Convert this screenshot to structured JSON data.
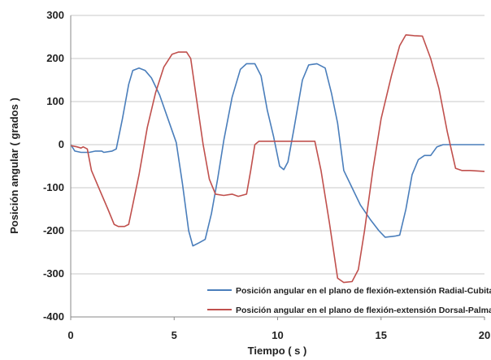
{
  "chart_data": {
    "type": "line",
    "xlabel": "Tiempo ( s )",
    "ylabel": "Posición angular ( grados )",
    "xlim": [
      0,
      20
    ],
    "ylim": [
      -400,
      300
    ],
    "xticks": [
      0,
      5,
      10,
      15,
      20
    ],
    "yticks": [
      -400,
      -300,
      -200,
      -100,
      0,
      100,
      200,
      300
    ],
    "grid": "horizontal",
    "legend_position": "bottom-right",
    "series": [
      {
        "name": "Posición angular en el plano de flexión-extensión Radial-Cubital",
        "color": "#4a7ebb",
        "points": [
          [
            0,
            0
          ],
          [
            0.2,
            -15
          ],
          [
            0.5,
            -18
          ],
          [
            0.9,
            -18
          ],
          [
            1.2,
            -15
          ],
          [
            1.5,
            -15
          ],
          [
            1.6,
            -18
          ],
          [
            2.0,
            -15
          ],
          [
            2.2,
            -10
          ],
          [
            2.5,
            60
          ],
          [
            2.8,
            140
          ],
          [
            3.0,
            172
          ],
          [
            3.3,
            178
          ],
          [
            3.6,
            172
          ],
          [
            3.9,
            155
          ],
          [
            4.3,
            115
          ],
          [
            4.7,
            60
          ],
          [
            5.1,
            5
          ],
          [
            5.4,
            -90
          ],
          [
            5.7,
            -200
          ],
          [
            5.9,
            -235
          ],
          [
            6.2,
            -228
          ],
          [
            6.5,
            -220
          ],
          [
            6.8,
            -160
          ],
          [
            7.1,
            -80
          ],
          [
            7.4,
            10
          ],
          [
            7.8,
            110
          ],
          [
            8.2,
            175
          ],
          [
            8.5,
            188
          ],
          [
            8.9,
            188
          ],
          [
            9.2,
            160
          ],
          [
            9.5,
            80
          ],
          [
            9.8,
            20
          ],
          [
            10.1,
            -50
          ],
          [
            10.3,
            -58
          ],
          [
            10.5,
            -40
          ],
          [
            10.8,
            40
          ],
          [
            11.2,
            150
          ],
          [
            11.5,
            185
          ],
          [
            11.9,
            188
          ],
          [
            12.3,
            178
          ],
          [
            12.6,
            120
          ],
          [
            12.9,
            50
          ],
          [
            13.2,
            -60
          ],
          [
            13.6,
            -100
          ],
          [
            14.0,
            -140
          ],
          [
            14.5,
            -175
          ],
          [
            14.9,
            -200
          ],
          [
            15.2,
            -215
          ],
          [
            15.7,
            -212
          ],
          [
            15.9,
            -210
          ],
          [
            16.2,
            -150
          ],
          [
            16.5,
            -70
          ],
          [
            16.8,
            -35
          ],
          [
            17.1,
            -25
          ],
          [
            17.4,
            -25
          ],
          [
            17.7,
            -5
          ],
          [
            18.0,
            0
          ],
          [
            19.0,
            0
          ],
          [
            20,
            0
          ]
        ]
      },
      {
        "name": "Posición angular en el plano de flexión-extensión Dorsal-Palmar",
        "color": "#c0504d",
        "points": [
          [
            0,
            -2
          ],
          [
            0.3,
            -5
          ],
          [
            0.5,
            -8
          ],
          [
            0.6,
            -5
          ],
          [
            0.8,
            -10
          ],
          [
            1.0,
            -60
          ],
          [
            1.4,
            -105
          ],
          [
            1.8,
            -150
          ],
          [
            2.1,
            -185
          ],
          [
            2.3,
            -190
          ],
          [
            2.6,
            -190
          ],
          [
            2.8,
            -185
          ],
          [
            3.0,
            -140
          ],
          [
            3.3,
            -70
          ],
          [
            3.7,
            40
          ],
          [
            4.1,
            120
          ],
          [
            4.5,
            180
          ],
          [
            4.9,
            210
          ],
          [
            5.2,
            215
          ],
          [
            5.6,
            215
          ],
          [
            5.8,
            200
          ],
          [
            6.1,
            100
          ],
          [
            6.4,
            0
          ],
          [
            6.7,
            -80
          ],
          [
            7.0,
            -115
          ],
          [
            7.4,
            -118
          ],
          [
            7.8,
            -115
          ],
          [
            8.1,
            -120
          ],
          [
            8.5,
            -115
          ],
          [
            8.7,
            -60
          ],
          [
            8.9,
            0
          ],
          [
            9.1,
            8
          ],
          [
            11.4,
            8
          ],
          [
            11.8,
            8
          ],
          [
            12.1,
            -60
          ],
          [
            12.5,
            -180
          ],
          [
            12.9,
            -310
          ],
          [
            13.2,
            -320
          ],
          [
            13.6,
            -318
          ],
          [
            13.9,
            -290
          ],
          [
            14.2,
            -200
          ],
          [
            14.6,
            -60
          ],
          [
            15.0,
            60
          ],
          [
            15.5,
            160
          ],
          [
            15.9,
            230
          ],
          [
            16.2,
            255
          ],
          [
            16.6,
            253
          ],
          [
            17.0,
            252
          ],
          [
            17.4,
            200
          ],
          [
            17.8,
            130
          ],
          [
            18.2,
            30
          ],
          [
            18.6,
            -55
          ],
          [
            18.9,
            -60
          ],
          [
            19.3,
            -60
          ],
          [
            20,
            -62
          ]
        ]
      }
    ]
  }
}
